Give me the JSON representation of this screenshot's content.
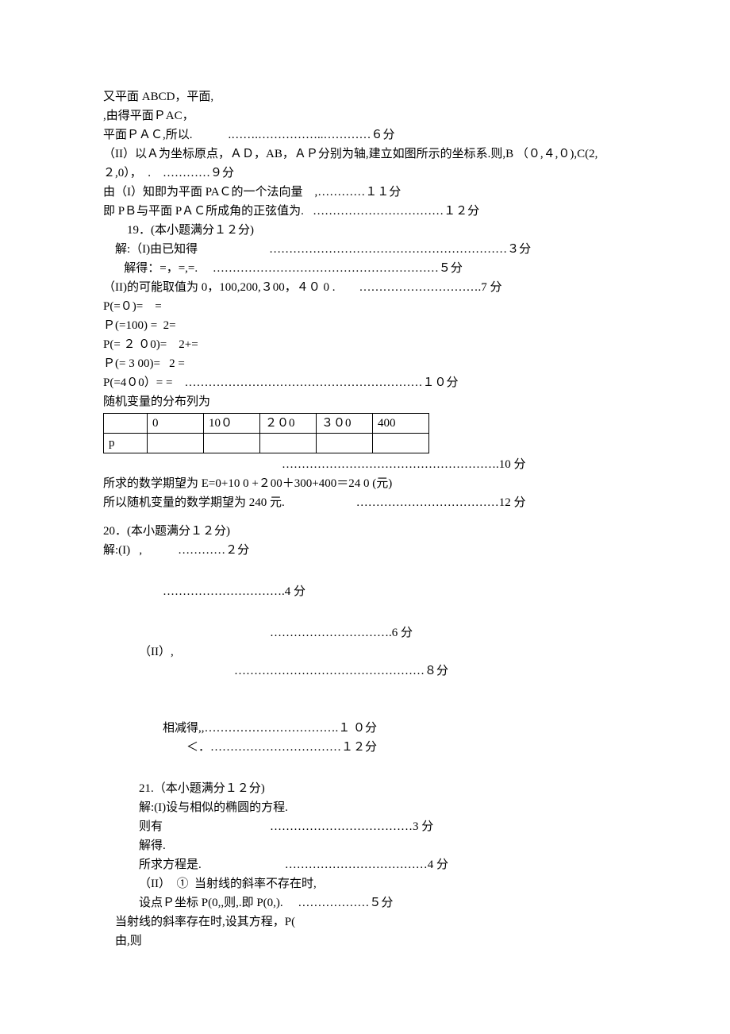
{
  "l01": "又平面 ABCD，平面,",
  "l02": ",由得平面ＰAC，",
  "l03": "平面ＰＡＣ,所以.　　　.…….……………..…………６分",
  "l04": "（II）以Ａ为坐标原点，ＡＤ，AB，ＡＰ分别为轴,建立如图所示的坐标系.则,B （０,４,０),C(2,２,0），　.　…………９分",
  "l05": "由（I）知即为平面 PAＣ的一个法向量　,…………１１分",
  "l06": "即 PＢ与平面 PＡＣ所成角的正弦值为.   ……………………………１２分",
  "l07": "19．(本小题满分１２分)",
  "l08": "解:（I)由已知得　　　　　　……………………………………………………３分",
  "l09": " 解得：=，=,=.　 …………………………………………………５分",
  "l10": "（II)的可能取值为 0，100,200,３00，４０ 0 .　　………………………….7 分",
  "l11": "P(=０)=　=",
  "l12": "Ｐ(=100) =  2=",
  "l13": "P(= ２ ０0)=　2+=",
  "l14": "Ｐ(= 3 00)=   2 =",
  "l15": "P(=4０0）= =　……………………………………………………１０分",
  "l16": "随机变量的分布列为",
  "table": {
    "headers": [
      "",
      "0",
      "10０",
      "２０0",
      "３０0",
      "400"
    ],
    "row": [
      "p",
      "",
      "",
      "",
      "",
      ""
    ]
  },
  "l17": "……………………………………………….10 分",
  "l18": "所求的数学期望为 E=0+10 0 +２00＋300+400＝24 0 (元)",
  "l19": "所以随机变量的数学期望为 240 元.　　　　　　………………………………12 分",
  "l20": "20．(本小题满分１２分)",
  "l21": "解:(I)   ,　　　…………２分",
  "l22": "………………………….4 分",
  "l23": "………………………….6 分",
  "l24": "（II）,",
  "l25": "…………………………………………８分",
  "l26": "相减得,,…………………………….１ ０分",
  "l27": "＜．……………………………１２分",
  "l28": "21.（本小题满分１２分)",
  "l29": "解:(I)设与相似的椭圆的方程.",
  "l30": "则有　　　　　　　　　………………………………3 分",
  "l31": "解得.",
  "l32": "所求方程是.　　　　　　　………………………………4 分",
  "l33": "（II）  ①  当射线的斜率不存在时,",
  "l34": "设点Ｐ坐标 P(0,,则,.即 P(0,).　 ………………５分",
  "l35": "当射线的斜率存在时,设其方程，P(",
  "l36": "由,则"
}
